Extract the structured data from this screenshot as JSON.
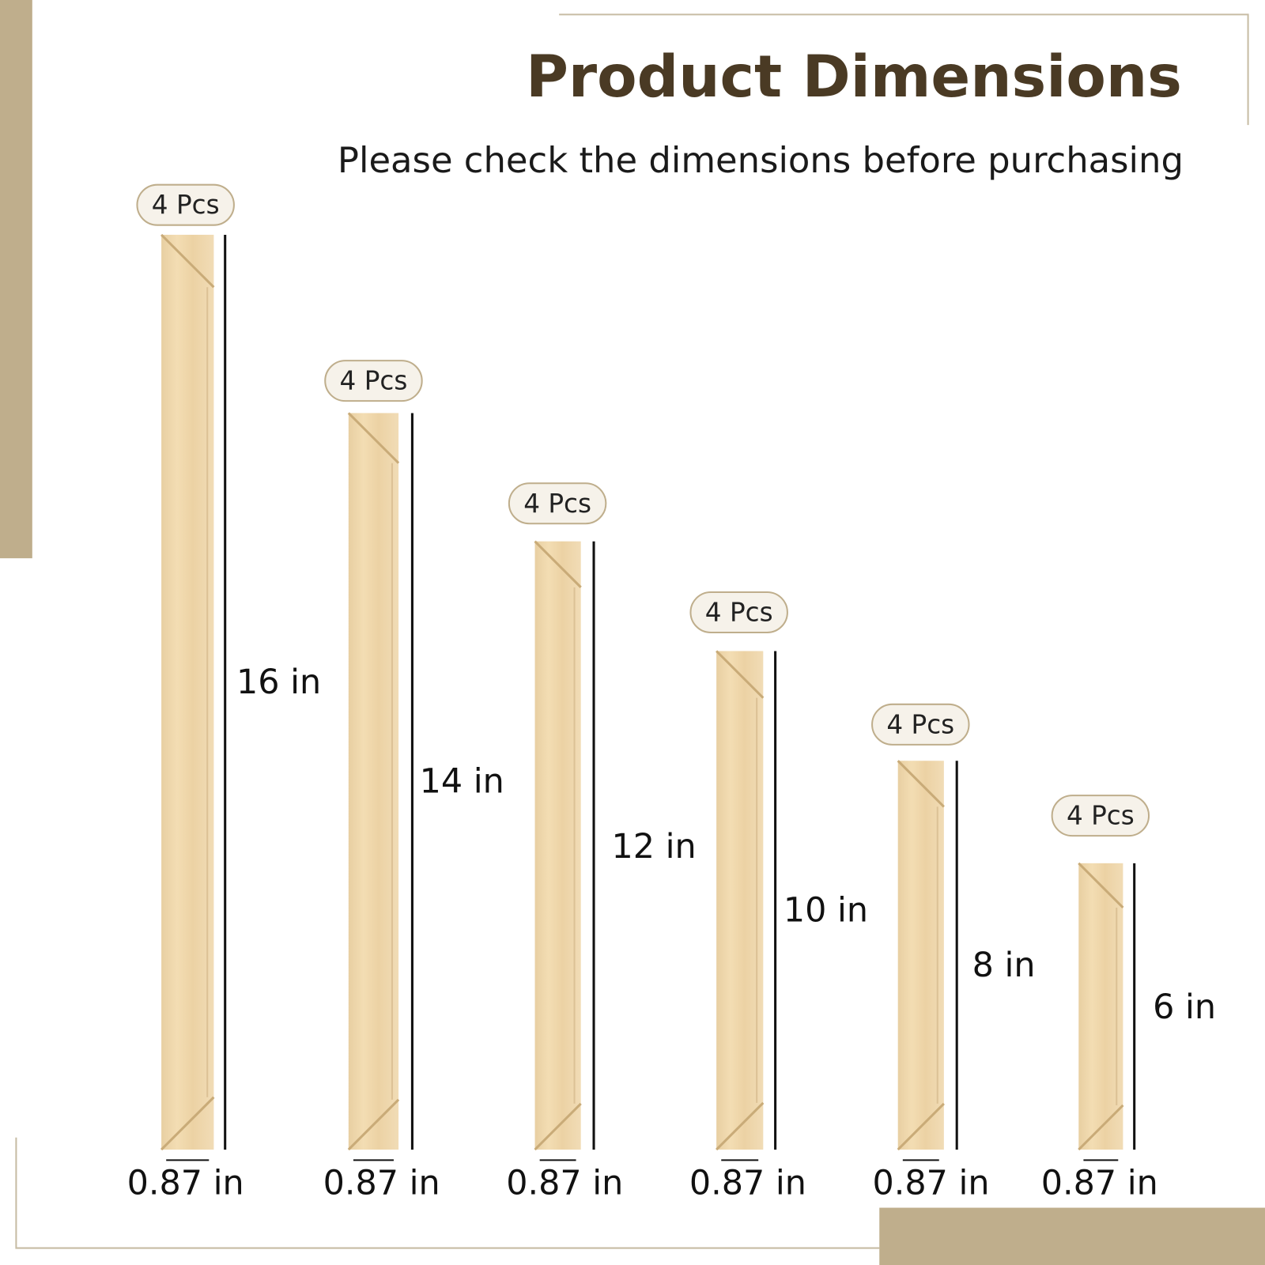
{
  "header": {
    "title": "Product Dimensions",
    "subtitle": "Please check the dimensions before purchasing"
  },
  "items": [
    {
      "quantity": "4 Pcs",
      "length": "16 in",
      "width": "0.87 in"
    },
    {
      "quantity": "4 Pcs",
      "length": "14 in",
      "width": "0.87 in"
    },
    {
      "quantity": "4 Pcs",
      "length": "12 in",
      "width": "0.87 in"
    },
    {
      "quantity": "4 Pcs",
      "length": "10 in",
      "width": "0.87 in"
    },
    {
      "quantity": "4 Pcs",
      "length": "8 in",
      "width": "0.87 in"
    },
    {
      "quantity": "4 Pcs",
      "length": "6 in",
      "width": "0.87 in"
    }
  ]
}
